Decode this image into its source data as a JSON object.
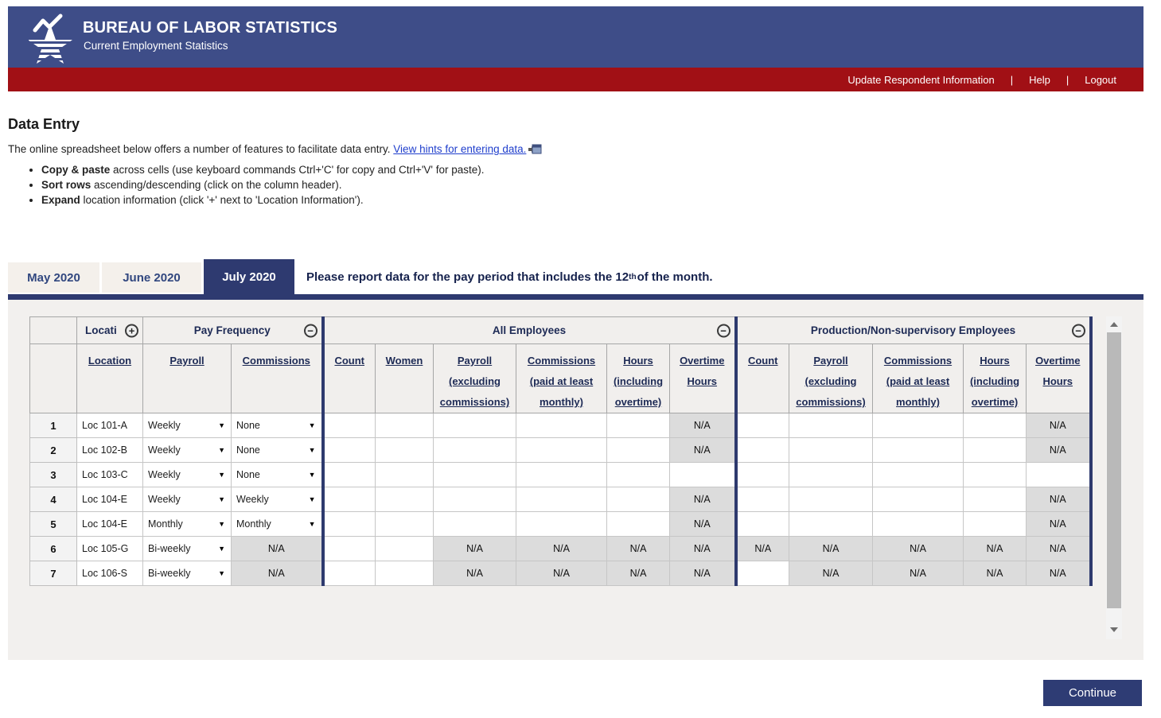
{
  "banner": {
    "title": "BUREAU OF LABOR STATISTICS",
    "subtitle": "Current Employment Statistics"
  },
  "navbar": {
    "links": [
      {
        "label": "Update Respondent Information"
      },
      {
        "label": "Help"
      },
      {
        "label": "Logout"
      }
    ],
    "separator": "|"
  },
  "intro": {
    "heading": "Data Entry",
    "lead": "The online spreadsheet below offers a number of features to facilitate data entry. ",
    "hints_link": "View hints for entering data.",
    "bullets": [
      {
        "b": "Copy & paste",
        "t": " across cells (use keyboard commands Ctrl+'C' for copy and Ctrl+'V' for paste)."
      },
      {
        "b": "Sort rows",
        "t": " ascending/descending (click on the column header)."
      },
      {
        "b": "Expand",
        "t": " location information (click '+' next to 'Location Information')."
      }
    ]
  },
  "tabs": [
    {
      "label": "May 2020",
      "active": false
    },
    {
      "label": "June 2020",
      "active": false
    },
    {
      "label": "July 2020",
      "active": true
    }
  ],
  "note": {
    "text": "Please report data for the pay period that includes the 12",
    "sup": "th",
    "tail": " of the month."
  },
  "ui": {
    "select_arrow": "▼"
  },
  "grid": {
    "na_label": "N/A",
    "icon_glyphs": {
      "plus": "+",
      "minus": "−"
    },
    "groups": [
      {
        "label": "Locati",
        "icon": "plus"
      },
      {
        "label": "Pay Frequency",
        "icon": "minus"
      },
      {
        "label": "All Employees",
        "icon": "minus"
      },
      {
        "label": "Production/Non-supervisory Employees",
        "icon": "minus"
      }
    ],
    "columns": [
      {
        "key": "location",
        "lines": [
          "Location"
        ]
      },
      {
        "key": "payroll-freq",
        "lines": [
          "Payroll"
        ]
      },
      {
        "key": "commissions-freq",
        "lines": [
          "Commissions"
        ]
      },
      {
        "key": "ae-count",
        "lines": [
          "Count"
        ]
      },
      {
        "key": "ae-women",
        "lines": [
          "Women"
        ]
      },
      {
        "key": "ae-payroll",
        "lines": [
          "Payroll",
          "(excluding",
          "commissions)"
        ]
      },
      {
        "key": "ae-commissions",
        "lines": [
          "Commissions",
          "(paid at least",
          "monthly)"
        ]
      },
      {
        "key": "ae-hours",
        "lines": [
          "Hours",
          "(including",
          "overtime)"
        ]
      },
      {
        "key": "ae-overtime",
        "lines": [
          "Overtime",
          "Hours"
        ]
      },
      {
        "key": "pn-count",
        "lines": [
          "Count"
        ]
      },
      {
        "key": "pn-payroll",
        "lines": [
          "Payroll",
          "(excluding",
          "commissions)"
        ]
      },
      {
        "key": "pn-commissions",
        "lines": [
          "Commissions",
          "(paid at least",
          "monthly)"
        ]
      },
      {
        "key": "pn-hours",
        "lines": [
          "Hours",
          "(including",
          "overtime)"
        ]
      },
      {
        "key": "pn-overtime",
        "lines": [
          "Overtime",
          "Hours"
        ]
      }
    ],
    "rows": [
      {
        "num": "1",
        "location": "Loc 101-A",
        "payroll_freq": {
          "kind": "select",
          "value": "Weekly"
        },
        "commissions_freq": {
          "kind": "select",
          "value": "None"
        },
        "ae": [
          "",
          "",
          "",
          "",
          "",
          "N/A"
        ],
        "pn": [
          "",
          "",
          "",
          "",
          "N/A"
        ]
      },
      {
        "num": "2",
        "location": "Loc 102-B",
        "payroll_freq": {
          "kind": "select",
          "value": "Weekly"
        },
        "commissions_freq": {
          "kind": "select",
          "value": "None"
        },
        "ae": [
          "",
          "",
          "",
          "",
          "",
          "N/A"
        ],
        "pn": [
          "",
          "",
          "",
          "",
          "N/A"
        ]
      },
      {
        "num": "3",
        "location": "Loc 103-C",
        "payroll_freq": {
          "kind": "select",
          "value": "Weekly"
        },
        "commissions_freq": {
          "kind": "select",
          "value": "None"
        },
        "ae": [
          "",
          "",
          "",
          "",
          "",
          ""
        ],
        "pn": [
          "",
          "",
          "",
          "",
          ""
        ]
      },
      {
        "num": "4",
        "location": "Loc 104-E",
        "payroll_freq": {
          "kind": "select",
          "value": "Weekly"
        },
        "commissions_freq": {
          "kind": "select",
          "value": "Weekly"
        },
        "ae": [
          "",
          "",
          "",
          "",
          "",
          "N/A"
        ],
        "pn": [
          "",
          "",
          "",
          "",
          "N/A"
        ]
      },
      {
        "num": "5",
        "location": "Loc 104-E",
        "payroll_freq": {
          "kind": "select",
          "value": "Monthly"
        },
        "commissions_freq": {
          "kind": "select",
          "value": "Monthly"
        },
        "ae": [
          "",
          "",
          "",
          "",
          "",
          "N/A"
        ],
        "pn": [
          "",
          "",
          "",
          "",
          "N/A"
        ]
      },
      {
        "num": "6",
        "location": "Loc 105-G",
        "payroll_freq": {
          "kind": "select",
          "value": "Bi-weekly"
        },
        "commissions_freq": {
          "kind": "na",
          "value": "N/A"
        },
        "ae": [
          "",
          "",
          "N/A",
          "N/A",
          "N/A",
          "N/A"
        ],
        "pn": [
          "N/A",
          "N/A",
          "N/A",
          "N/A",
          "N/A"
        ]
      },
      {
        "num": "7",
        "location": "Loc 106-S",
        "payroll_freq": {
          "kind": "select",
          "value": "Bi-weekly"
        },
        "commissions_freq": {
          "kind": "na",
          "value": "N/A"
        },
        "ae": [
          "",
          "",
          "N/A",
          "N/A",
          "N/A",
          "N/A"
        ],
        "pn": [
          "",
          "N/A",
          "N/A",
          "N/A",
          "N/A"
        ]
      }
    ]
  },
  "button": {
    "continue": "Continue"
  },
  "colors": {
    "banner_navy": "#3e4d88",
    "dark_navy": "#2e3a70",
    "red": "#a11015",
    "link_blue": "#1f3ecc",
    "na_gray": "#dcdcdc",
    "sheet_bg": "#f2f0ee"
  }
}
